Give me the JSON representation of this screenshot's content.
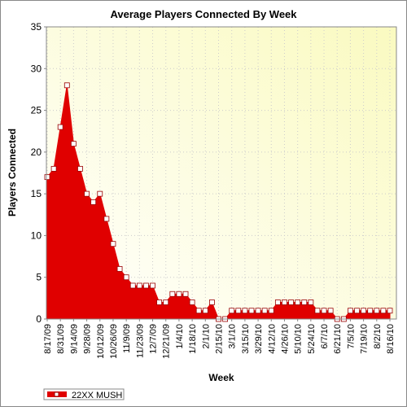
{
  "chart_data": {
    "type": "area",
    "title": "Average Players Connected By Week",
    "x_label": "Week",
    "y_label": "Players Connected",
    "categories": [
      "8/17/09",
      null,
      "8/31/09",
      null,
      "9/14/09",
      null,
      "9/28/09",
      null,
      "10/12/09",
      null,
      "10/26/09",
      null,
      "11/9/09",
      null,
      "11/23/09",
      null,
      "12/7/09",
      null,
      "12/21/09",
      null,
      "1/4/10",
      null,
      "1/18/10",
      null,
      "2/1/10",
      null,
      "2/15/10",
      null,
      "3/1/10",
      null,
      "3/15/10",
      null,
      "3/29/10",
      null,
      "4/12/10",
      null,
      "4/26/10",
      null,
      "5/10/10",
      null,
      "5/24/10",
      null,
      "6/7/10",
      null,
      "6/21/10",
      null,
      "7/5/10",
      null,
      "7/19/10",
      null,
      "8/2/10",
      null,
      "8/16/10"
    ],
    "series": [
      {
        "name": "22XX MUSH",
        "color": "#e00000",
        "values": [
          17,
          18,
          23,
          28,
          21,
          18,
          15,
          14,
          15,
          12,
          9,
          6,
          5,
          4,
          4,
          4,
          4,
          2,
          2,
          3,
          3,
          3,
          2,
          1,
          1,
          2,
          0,
          0,
          1,
          1,
          1,
          1,
          1,
          1,
          1,
          2,
          2,
          2,
          2,
          2,
          2,
          1,
          1,
          1,
          0,
          0,
          1,
          1,
          1,
          1,
          1,
          1,
          1
        ]
      }
    ],
    "ylim": [
      0,
      35
    ],
    "yticks": [
      0,
      5,
      10,
      15,
      20,
      25,
      30,
      35
    ],
    "grid": true
  }
}
